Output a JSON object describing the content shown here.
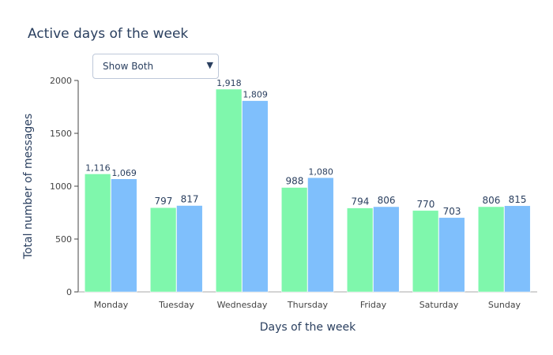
{
  "chart_data": {
    "type": "bar",
    "title": "Active days of the week",
    "xlabel": "Days of the week",
    "ylabel": "Total number of messages",
    "categories": [
      "Monday",
      "Tuesday",
      "Wednesday",
      "Thursday",
      "Friday",
      "Saturday",
      "Sunday"
    ],
    "series": [
      {
        "values": [
          1116,
          797,
          1918,
          988,
          794,
          770,
          806
        ],
        "color": "#7ff7ac"
      },
      {
        "values": [
          1069,
          817,
          1809,
          1080,
          806,
          703,
          815
        ],
        "color": "#7fbffc"
      }
    ],
    "data_labels": [
      [
        "1,116",
        "797",
        "1,918",
        "988",
        "794",
        "770",
        "806"
      ],
      [
        "1,069",
        "817",
        "1,809",
        "1,080",
        "806",
        "703",
        "815"
      ]
    ],
    "ylim": [
      0,
      2000
    ],
    "yticks": [
      0,
      500,
      1000,
      1500,
      2000
    ],
    "ytick_labels": [
      "0",
      "500",
      "1000",
      "1500",
      "2000"
    ],
    "grid": false
  },
  "controls": {
    "dropdown": {
      "selected": "Show Both",
      "icon": "triangle-down-icon"
    }
  }
}
